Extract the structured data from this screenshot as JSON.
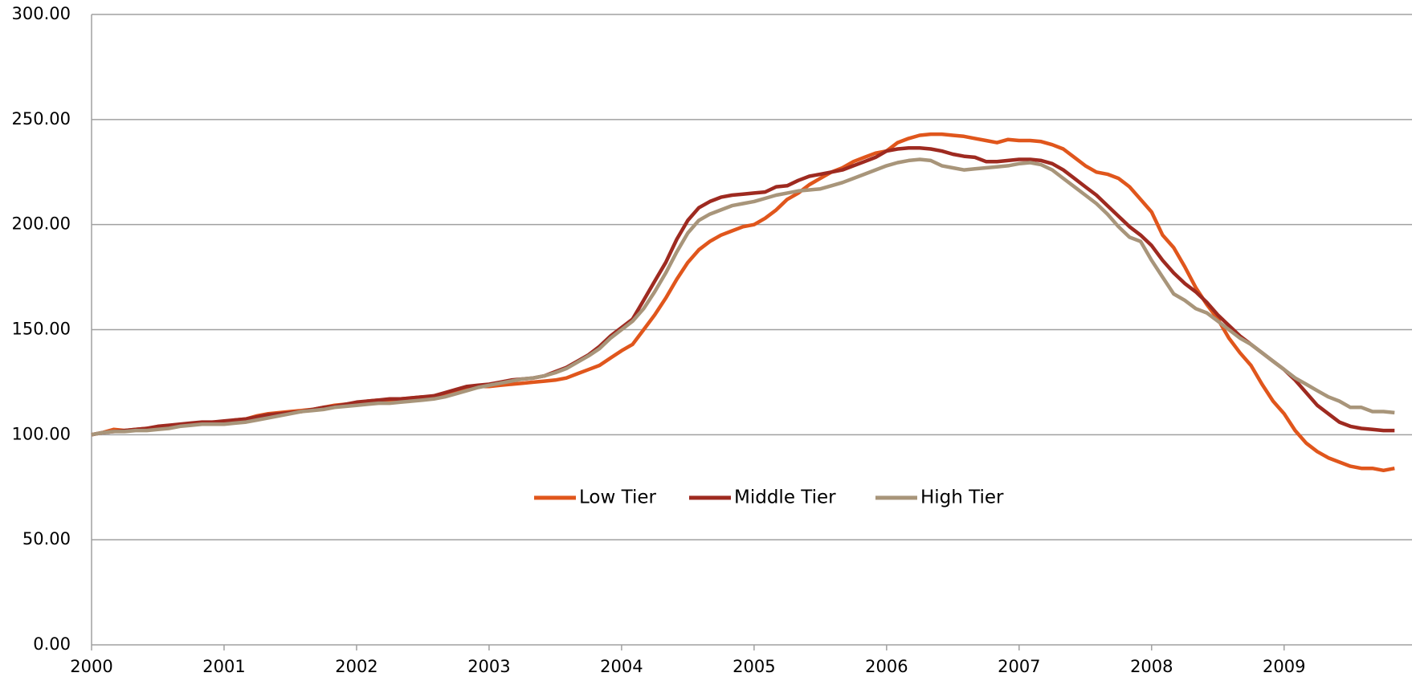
{
  "chart_data": {
    "type": "line",
    "categories": [
      "2000",
      null,
      null,
      null,
      null,
      null,
      null,
      null,
      null,
      null,
      null,
      null,
      "2001",
      null,
      null,
      null,
      null,
      null,
      null,
      null,
      null,
      null,
      null,
      null,
      "2002",
      null,
      null,
      null,
      null,
      null,
      null,
      null,
      null,
      null,
      null,
      null,
      "2003",
      null,
      null,
      null,
      null,
      null,
      null,
      null,
      null,
      null,
      null,
      null,
      "2004",
      null,
      null,
      null,
      null,
      null,
      null,
      null,
      null,
      null,
      null,
      null,
      "2005",
      null,
      null,
      null,
      null,
      null,
      null,
      null,
      null,
      null,
      null,
      null,
      "2006",
      null,
      null,
      null,
      null,
      null,
      null,
      null,
      null,
      null,
      null,
      null,
      "2007",
      null,
      null,
      null,
      null,
      null,
      null,
      null,
      null,
      null,
      null,
      null,
      "2008",
      null,
      null,
      null,
      null,
      null,
      null,
      null,
      null,
      null,
      null,
      null,
      "2009",
      null,
      null,
      null,
      null,
      null,
      null,
      null,
      null,
      null,
      null
    ],
    "series": [
      {
        "name": "Low Tier",
        "color": "#e0561c",
        "values": [
          100,
          101,
          102.5,
          102,
          102.5,
          103,
          103.5,
          104,
          104.5,
          105,
          105.5,
          106,
          106,
          107,
          107.5,
          109,
          110,
          110.5,
          111,
          111.5,
          112,
          113,
          114,
          114.5,
          115,
          116,
          116.5,
          116.5,
          117,
          117.5,
          118,
          118,
          119,
          121,
          122.5,
          123,
          123,
          123.5,
          124,
          124.5,
          125,
          125.5,
          126,
          127,
          129,
          131,
          133,
          136.5,
          140,
          143,
          150,
          157,
          165,
          174,
          182,
          188,
          192,
          195,
          197,
          199,
          200,
          203,
          207,
          212,
          215,
          219,
          222,
          225,
          227,
          230,
          232,
          234,
          235,
          239,
          241,
          242.5,
          243,
          243,
          242.5,
          242,
          241,
          240,
          239,
          240.5,
          240,
          240,
          239.5,
          238,
          236,
          232,
          228,
          225,
          224,
          222,
          218,
          212,
          206,
          195,
          189,
          180,
          170,
          162,
          155,
          146,
          139,
          133,
          124,
          116,
          110,
          102,
          96,
          92,
          89,
          87,
          85,
          84,
          84,
          83,
          84
        ]
      },
      {
        "name": "Middle Tier",
        "color": "#9e2a20",
        "values": [
          100,
          101,
          101.5,
          102,
          102.5,
          103,
          104,
          104.5,
          105,
          105.5,
          106,
          106,
          106.5,
          107,
          107.5,
          108.5,
          109.5,
          110,
          110.5,
          111,
          112,
          113,
          113.5,
          114.5,
          115.5,
          116,
          116.5,
          117,
          117,
          117.5,
          118,
          118.5,
          120,
          121.5,
          123,
          123.5,
          124,
          125,
          126,
          126.5,
          127,
          128,
          130,
          132,
          135,
          138,
          142,
          147,
          151,
          155,
          164,
          173,
          182,
          193,
          202,
          208,
          211,
          213,
          214,
          214.5,
          215,
          215.5,
          218,
          218.5,
          221,
          223,
          224,
          225,
          226,
          228,
          230,
          232,
          235,
          236,
          236.5,
          236.5,
          236,
          235,
          233.5,
          232.5,
          232,
          230,
          230,
          230.5,
          231,
          231,
          230.5,
          229,
          226,
          222,
          218,
          214,
          209,
          204,
          199,
          195,
          190,
          183,
          177,
          172,
          168,
          163,
          157,
          152,
          147,
          143,
          139,
          135,
          131,
          126,
          120,
          114,
          110,
          106,
          104,
          103,
          102.5,
          102,
          102
        ]
      },
      {
        "name": "High Tier",
        "color": "#a8957a",
        "values": [
          100,
          101,
          101.5,
          101.5,
          102,
          102,
          102.5,
          103,
          104,
          104.5,
          105,
          105,
          105,
          105.5,
          106,
          107,
          108,
          109,
          110,
          111,
          111.5,
          112,
          113,
          113.5,
          114,
          114.5,
          115,
          115,
          115.5,
          116,
          116.5,
          117,
          118,
          119.5,
          121,
          122.5,
          123.5,
          124.5,
          125.5,
          126.5,
          127,
          128,
          129.5,
          131.5,
          134.5,
          137.5,
          141,
          146,
          150,
          154,
          160,
          168,
          177,
          187,
          196,
          202,
          205,
          207,
          209,
          210,
          211,
          212.5,
          214,
          215,
          216,
          216.5,
          217,
          218.5,
          220,
          222,
          224,
          226,
          228,
          229.5,
          230.5,
          231,
          230.5,
          228,
          227,
          226,
          226.5,
          227,
          227.5,
          228,
          229,
          229.5,
          228.5,
          226,
          222,
          218,
          214,
          210,
          205,
          199,
          194,
          192,
          183,
          175,
          167,
          164,
          160,
          158,
          154,
          150,
          146,
          143,
          139,
          135,
          131,
          127,
          124,
          121,
          118,
          116,
          113,
          113,
          111,
          111,
          110.5
        ]
      }
    ],
    "ylim": [
      0,
      300
    ],
    "yticks": [
      {
        "value": 0,
        "label": "0.00"
      },
      {
        "value": 50,
        "label": "50.00"
      },
      {
        "value": 100,
        "label": "100.00"
      },
      {
        "value": 150,
        "label": "150.00"
      },
      {
        "value": 200,
        "label": "200.00"
      },
      {
        "value": 250,
        "label": "250.00"
      },
      {
        "value": 300,
        "label": "300.00"
      }
    ],
    "grid": true,
    "legend": "center"
  }
}
